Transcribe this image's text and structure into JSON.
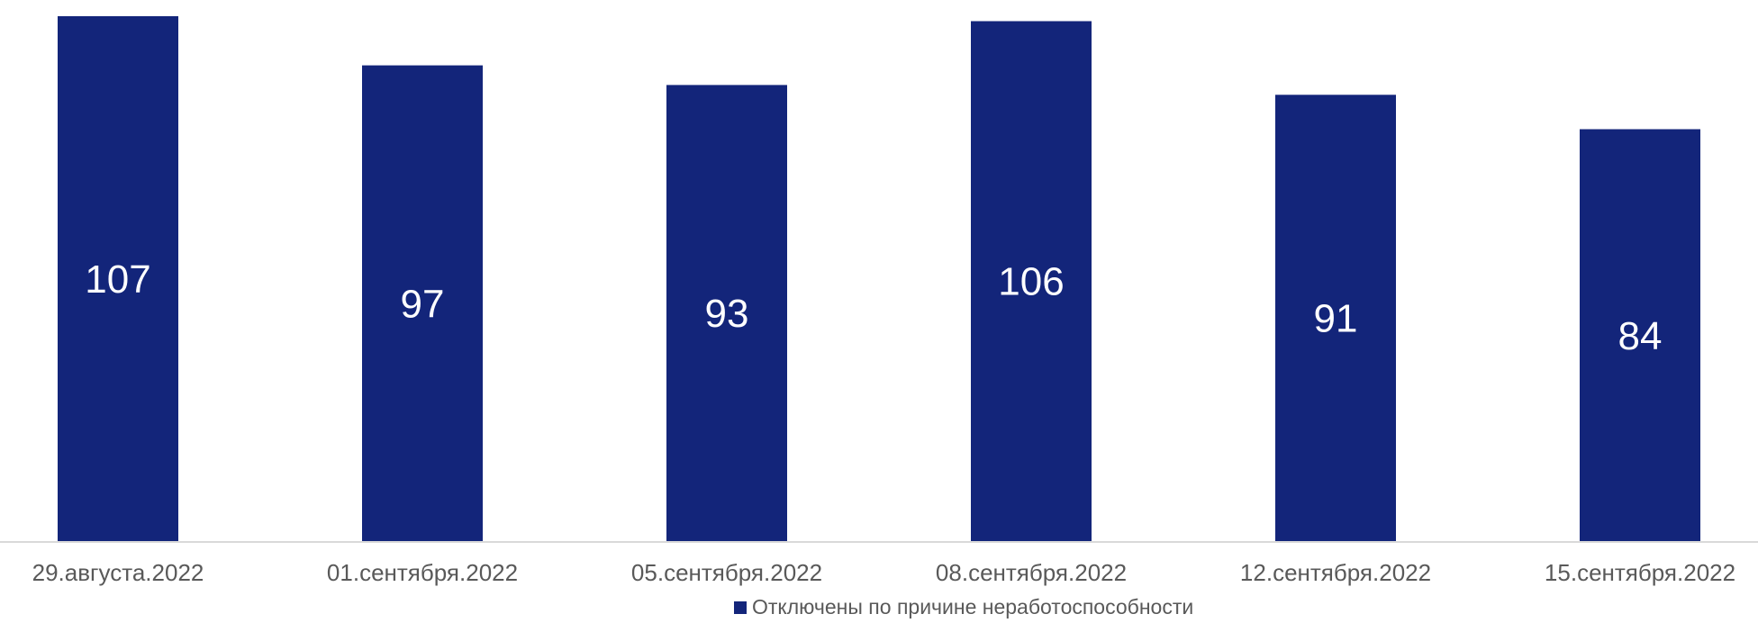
{
  "chart_data": {
    "type": "bar",
    "categories": [
      "29.августа.2022",
      "01.сентября.2022",
      "05.сентября.2022",
      "08.сентября.2022",
      "12.сентября.2022",
      "15.сентября.2022"
    ],
    "series": [
      {
        "name": "Отключены по причине неработоспособности",
        "values": [
          107,
          97,
          93,
          106,
          91,
          84
        ],
        "color": "#13257a"
      }
    ],
    "title": "",
    "xlabel": "",
    "ylabel": "",
    "ylim": [
      0,
      110
    ],
    "grid": false,
    "data_labels": "inside-center",
    "legend_position": "bottom-center"
  }
}
